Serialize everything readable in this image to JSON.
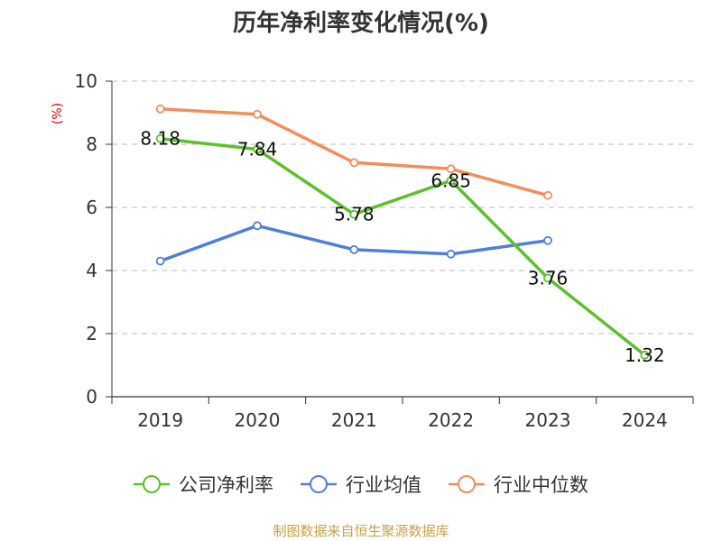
{
  "chart_data": {
    "type": "line",
    "title": "历年净利率变化情况(%)",
    "xlabel": "",
    "ylabel": "(%)",
    "categories": [
      "2019",
      "2020",
      "2021",
      "2022",
      "2023",
      "2024"
    ],
    "ylim": [
      0,
      10
    ],
    "yticks": [
      0,
      2,
      4,
      6,
      8,
      10
    ],
    "grid": true,
    "legend_position": "bottom",
    "series": [
      {
        "name": "公司净利率",
        "color": "#5cc02b",
        "values": [
          8.18,
          7.84,
          5.78,
          6.85,
          3.76,
          1.32
        ],
        "labels": [
          "8.18",
          "7.84",
          "5.78",
          "6.85",
          "3.76",
          "1.32"
        ]
      },
      {
        "name": "行业均值",
        "color": "#4f7fdb",
        "values": [
          4.3,
          5.42,
          4.66,
          4.52,
          4.95,
          null
        ]
      },
      {
        "name": "行业中位数",
        "color": "#f48d5a",
        "values": [
          9.12,
          8.95,
          7.42,
          7.22,
          6.38,
          null
        ]
      }
    ]
  },
  "footer": {
    "source": "制图数据来自恒生聚源数据库"
  }
}
